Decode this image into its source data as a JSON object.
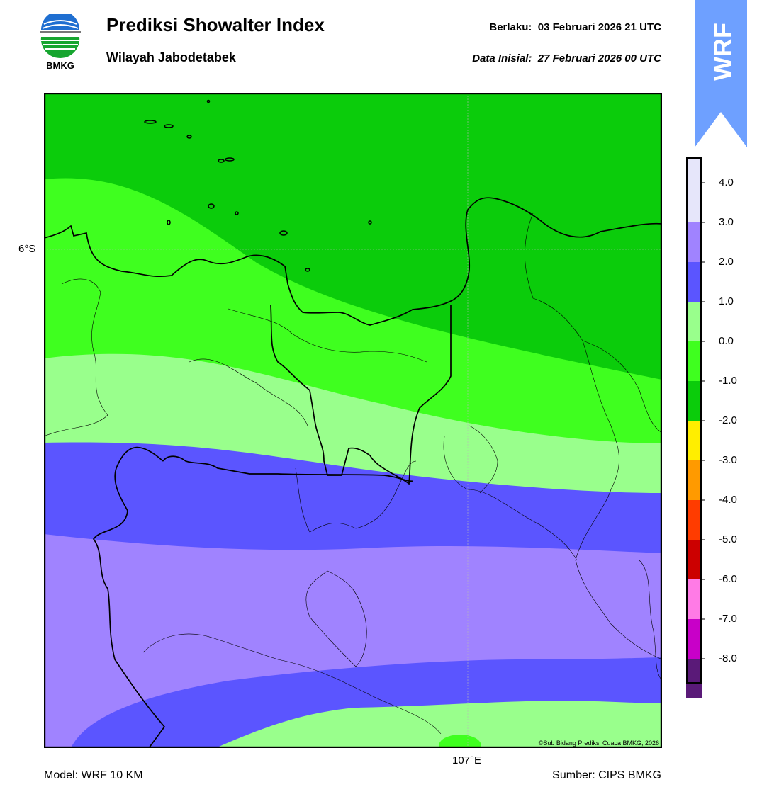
{
  "header": {
    "logo_text": "BMKG",
    "title": "Prediksi Showalter Index",
    "subtitle": "Wilayah Jabodetabek",
    "valid_label": "Berlaku:",
    "valid_time": "03 Februari 2026 21 UTC",
    "init_label": "Data Inisial:",
    "init_time": "27 Februari 2026 00 UTC",
    "model_tag": "WRF"
  },
  "map": {
    "lat_label": "6°S",
    "lon_label": "107°E",
    "copyright": "©Sub Bidang Prediksi Cuaca BMKG, 2026",
    "bands_top_to_bottom": [
      {
        "range": "-2.0 to -1.0",
        "color": "#0bcc0b"
      },
      {
        "range": "-1.0 to 0.0",
        "color": "#3fff1f"
      },
      {
        "range": "0.0 to 1.0",
        "color": "#99ff8c"
      },
      {
        "range": "1.0 to 2.0",
        "color": "#5b55ff"
      },
      {
        "range": "2.0 to 3.0",
        "color": "#a083ff"
      },
      {
        "range": "1.0 to 2.0",
        "color": "#5b55ff"
      },
      {
        "range": "0.0 to 1.0",
        "color": "#99ff8c"
      },
      {
        "range": "-1.0 to 0.0",
        "color": "#3fff1f"
      }
    ]
  },
  "colorbar": {
    "ticks": [
      "4.0",
      "3.0",
      "2.0",
      "1.0",
      "0.0",
      "-1.0",
      "-2.0",
      "-3.0",
      "-4.0",
      "-5.0",
      "-6.0",
      "-7.0",
      "-8.0"
    ],
    "colors_top_to_bottom": [
      "#e6e6fa",
      "#a083ff",
      "#5b55ff",
      "#99ff8c",
      "#3fff1f",
      "#0bcc0b",
      "#ffee00",
      "#ff9a00",
      "#ff3c00",
      "#cc0000",
      "#ff7be6",
      "#c800c8",
      "#5a1a78"
    ]
  },
  "footer": {
    "model": "Model: WRF 10 KM",
    "source": "Sumber: CIPS BMKG"
  }
}
